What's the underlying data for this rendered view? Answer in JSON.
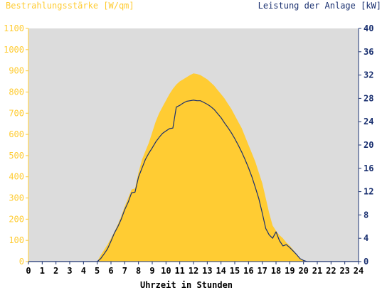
{
  "chart_data": {
    "type": "area",
    "title_left": "Bestrahlungsstärke [W/qm]",
    "title_right": "Leistung der Anlage [kW]",
    "xlabel": "Uhrzeit in Stunden",
    "x_ticks": [
      "0",
      "1",
      "2",
      "3",
      "4",
      "5",
      "6",
      "7",
      "8",
      "9",
      "10",
      "11",
      "12",
      "13",
      "14",
      "15",
      "16",
      "17",
      "18",
      "19",
      "20",
      "21",
      "22",
      "23",
      "24"
    ],
    "y_left_ticks": [
      "0",
      "100",
      "200",
      "300",
      "400",
      "500",
      "600",
      "700",
      "800",
      "900",
      "1000",
      "1100"
    ],
    "y_right_ticks": [
      "0",
      "4",
      "8",
      "12",
      "16",
      "20",
      "24",
      "28",
      "32",
      "36",
      "40"
    ],
    "xlim": [
      0,
      24
    ],
    "ylim_left": [
      0,
      1100
    ],
    "ylim_right": [
      0,
      40
    ],
    "colors": {
      "plot_background": "#dcdcdc",
      "irradiance_fill": "#ffcc33",
      "power_line": "#1a3070",
      "left_axis": "#ffcc33",
      "right_axis": "#1a3070"
    },
    "series": [
      {
        "name": "Bestrahlungsstärke",
        "axis": "left",
        "style": "area",
        "x": [
          0,
          5,
          5.25,
          5.5,
          5.75,
          6,
          6.25,
          6.5,
          6.75,
          7,
          7.25,
          7.5,
          7.75,
          8,
          8.25,
          8.5,
          8.75,
          9,
          9.25,
          9.5,
          9.75,
          10,
          10.25,
          10.5,
          10.75,
          11,
          11.25,
          11.5,
          11.75,
          12,
          12.25,
          12.5,
          12.75,
          13,
          13.25,
          13.5,
          13.75,
          14,
          14.25,
          14.5,
          14.75,
          15,
          15.25,
          15.5,
          15.75,
          16,
          16.25,
          16.5,
          16.75,
          17,
          17.25,
          17.5,
          17.75,
          18,
          18.25,
          18.5,
          18.75,
          19,
          19.25,
          19.5,
          19.75,
          20,
          20.25,
          24
        ],
        "y": [
          0,
          0,
          30,
          55,
          80,
          110,
          140,
          175,
          215,
          260,
          300,
          340,
          345,
          420,
          480,
          520,
          560,
          610,
          660,
          700,
          730,
          760,
          790,
          815,
          835,
          850,
          860,
          870,
          880,
          888,
          885,
          880,
          870,
          860,
          845,
          830,
          810,
          790,
          770,
          745,
          720,
          690,
          660,
          630,
          590,
          550,
          510,
          470,
          420,
          370,
          300,
          230,
          170,
          145,
          125,
          110,
          90,
          75,
          55,
          35,
          15,
          5,
          0,
          0
        ]
      },
      {
        "name": "Leistung der Anlage",
        "axis": "right",
        "style": "line",
        "x": [
          0,
          5,
          5.25,
          5.5,
          5.75,
          6,
          6.25,
          6.5,
          6.75,
          7,
          7.25,
          7.5,
          7.75,
          8,
          8.25,
          8.5,
          8.75,
          9,
          9.25,
          9.5,
          9.75,
          10,
          10.25,
          10.5,
          10.75,
          11,
          11.25,
          11.5,
          11.75,
          12,
          12.25,
          12.5,
          12.75,
          13,
          13.25,
          13.5,
          13.75,
          14,
          14.25,
          14.5,
          14.75,
          15,
          15.25,
          15.5,
          15.75,
          16,
          16.25,
          16.5,
          16.75,
          17,
          17.25,
          17.5,
          17.75,
          18,
          18.25,
          18.5,
          18.75,
          19,
          19.25,
          19.5,
          19.75,
          20,
          20.25,
          24
        ],
        "y": [
          0,
          0,
          0.5,
          1.3,
          2.2,
          3.5,
          4.9,
          6.0,
          7.3,
          8.9,
          10.2,
          11.8,
          11.9,
          14.5,
          16.0,
          17.5,
          18.6,
          19.5,
          20.5,
          21.3,
          22.0,
          22.4,
          22.8,
          22.9,
          26.5,
          26.8,
          27.2,
          27.5,
          27.6,
          27.7,
          27.6,
          27.6,
          27.3,
          27.0,
          26.6,
          26.1,
          25.4,
          24.7,
          23.8,
          23.0,
          22.1,
          21.1,
          20.0,
          18.8,
          17.5,
          16.1,
          14.5,
          12.7,
          10.8,
          8.3,
          5.7,
          4.6,
          4.0,
          5.1,
          3.6,
          2.7,
          2.9,
          2.4,
          1.8,
          1.2,
          0.5,
          0.2,
          0,
          0
        ]
      }
    ]
  }
}
